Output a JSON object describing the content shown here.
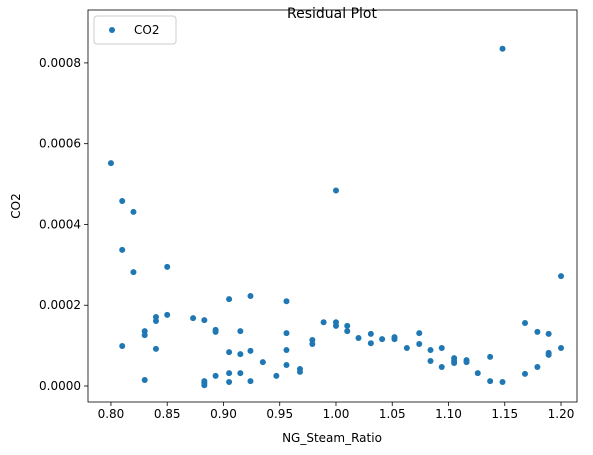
{
  "chart_data": {
    "type": "scatter",
    "title": "Residual Plot",
    "x_label": "NG_Steam_Ratio",
    "y_label": "CO2",
    "legend": "upper left",
    "grid": false,
    "xlim": [
      0.7796,
      1.2142
    ],
    "ylim": [
      -3.96e-05,
      0.000931
    ],
    "xticks": [
      {
        "value": 0.8,
        "label": "0.80"
      },
      0.85,
      {
        "value": 0.9,
        "label": "0.90"
      },
      0.95,
      {
        "value": 1.0,
        "label": "1.00"
      },
      1.05,
      {
        "value": 1.1,
        "label": "1.10"
      },
      1.15,
      {
        "value": 1.2,
        "label": "1.20"
      }
    ],
    "yticks": [
      {
        "value": 0,
        "label": "0.0000"
      },
      {
        "value": 0.0002,
        "label": "0.0002"
      },
      {
        "value": 0.0004,
        "label": "0.0004"
      },
      {
        "value": 0.0006,
        "label": "0.0006"
      },
      {
        "value": 0.0008,
        "label": "0.0008"
      }
    ],
    "series": [
      {
        "name": "CO2",
        "color": "#1f77b4",
        "x": [
          0.8,
          0.81,
          0.81,
          0.81,
          0.82,
          0.82,
          0.83,
          0.83,
          0.83,
          0.84,
          0.84,
          0.84,
          0.85,
          0.85,
          0.873,
          0.883,
          0.883,
          0.883,
          0.883,
          0.893,
          0.893,
          0.893,
          0.905,
          0.905,
          0.905,
          0.905,
          0.915,
          0.915,
          0.915,
          0.924,
          0.924,
          0.924,
          0.935,
          0.947,
          0.956,
          0.956,
          0.956,
          0.956,
          0.968,
          0.968,
          0.979,
          0.979,
          0.989,
          1.0,
          1.0,
          1.0,
          1.01,
          1.01,
          1.02,
          1.031,
          1.031,
          1.041,
          1.052,
          1.052,
          1.063,
          1.074,
          1.074,
          1.084,
          1.084,
          1.094,
          1.094,
          1.105,
          1.105,
          1.105,
          1.116,
          1.116,
          1.126,
          1.137,
          1.137,
          1.148,
          1.148,
          1.168,
          1.168,
          1.179,
          1.179,
          1.189,
          1.189,
          1.189,
          1.2,
          1.2
        ],
        "values": [
          0.000552,
          0.000458,
          0.000337,
          9.9e-05,
          0.000431,
          0.000282,
          0.000136,
          0.000126,
          1.5e-05,
          0.000171,
          0.000161,
          9.2e-05,
          0.000295,
          0.000176,
          0.000168,
          0.000163,
          1.2e-05,
          7e-06,
          2e-06,
          0.000139,
          0.000134,
          2.5e-05,
          0.000215,
          8.4e-05,
          3.2e-05,
          1e-05,
          0.000136,
          7.9e-05,
          3.2e-05,
          0.000223,
          8.7e-05,
          1.2e-05,
          5.9e-05,
          2.5e-05,
          0.00021,
          0.000131,
          8.9e-05,
          5.2e-05,
          4.2e-05,
          3.5e-05,
          0.000114,
          0.000104,
          0.000158,
          0.000484,
          0.000158,
          0.000149,
          0.000149,
          0.000136,
          0.000119,
          0.000129,
          0.000106,
          0.000116,
          0.000121,
          0.000116,
          9.4e-05,
          0.000131,
          0.000104,
          8.9e-05,
          6.2e-05,
          9.4e-05,
          4.7e-05,
          6.9e-05,
          6.2e-05,
          5.7e-05,
          6.4e-05,
          5.9e-05,
          3.2e-05,
          7.2e-05,
          1.2e-05,
          0.000835,
          1e-05,
          3e-05,
          0.000156,
          0.000134,
          4.7e-05,
          0.000129,
          8.2e-05,
          7.7e-05,
          0.000272,
          9.4e-05
        ]
      }
    ]
  }
}
